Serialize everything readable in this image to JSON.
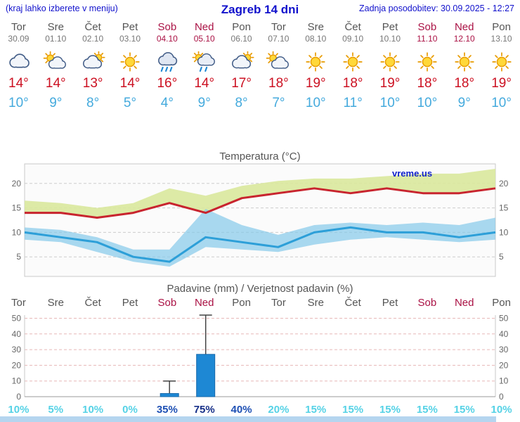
{
  "header": {
    "left_note": "(kraj lahko izberete v meniju)",
    "title": "Zagreb 14 dni",
    "updated": "Zadnja posodobitev: 30.09.2025 - 12:27"
  },
  "watermark": "vreme.us",
  "colors": {
    "accent_blue": "#1111cc",
    "weekend_red": "#aa1144",
    "max_red": "#cc1122",
    "min_blue": "#44aadd",
    "band_green": "#d9e89c",
    "band_blue": "#85c9ea",
    "line_red": "#c8242e",
    "line_blue": "#2d9fd8",
    "bar_blue": "#1e88d4",
    "grid_gray": "#cccccc",
    "grid_red": "#e7b8b8",
    "prob_high": "#162f88",
    "prob_mid": "#1e50b4",
    "prob_low": "#55d2e6",
    "footer_strip": "#b5d5ef"
  },
  "days": [
    {
      "name": "Tor",
      "date": "30.09",
      "weekend": false,
      "icon": "cloudy",
      "max": "14°",
      "min": "10°"
    },
    {
      "name": "Sre",
      "date": "01.10",
      "weekend": false,
      "icon": "partly-cloudy",
      "max": "14°",
      "min": "9°"
    },
    {
      "name": "Čet",
      "date": "02.10",
      "weekend": false,
      "icon": "mostly-cloudy",
      "max": "13°",
      "min": "8°"
    },
    {
      "name": "Pet",
      "date": "03.10",
      "weekend": false,
      "icon": "sunny",
      "max": "14°",
      "min": "5°"
    },
    {
      "name": "Sob",
      "date": "04.10",
      "weekend": true,
      "icon": "rain",
      "max": "16°",
      "min": "4°"
    },
    {
      "name": "Ned",
      "date": "05.10",
      "weekend": true,
      "icon": "sun-rain",
      "max": "14°",
      "min": "9°"
    },
    {
      "name": "Pon",
      "date": "06.10",
      "weekend": false,
      "icon": "mostly-cloudy",
      "max": "17°",
      "min": "8°"
    },
    {
      "name": "Tor",
      "date": "07.10",
      "weekend": false,
      "icon": "partly-cloudy",
      "max": "18°",
      "min": "7°"
    },
    {
      "name": "Sre",
      "date": "08.10",
      "weekend": false,
      "icon": "sunny",
      "max": "19°",
      "min": "10°"
    },
    {
      "name": "Čet",
      "date": "09.10",
      "weekend": false,
      "icon": "sunny",
      "max": "18°",
      "min": "11°"
    },
    {
      "name": "Pet",
      "date": "10.10",
      "weekend": false,
      "icon": "sunny",
      "max": "19°",
      "min": "10°"
    },
    {
      "name": "Sob",
      "date": "11.10",
      "weekend": true,
      "icon": "sunny",
      "max": "18°",
      "min": "10°"
    },
    {
      "name": "Ned",
      "date": "12.10",
      "weekend": true,
      "icon": "sunny",
      "max": "18°",
      "min": "9°"
    },
    {
      "name": "Pon",
      "date": "13.10",
      "weekend": false,
      "icon": "sunny",
      "max": "19°",
      "min": "10°"
    }
  ],
  "chart_data": [
    {
      "type": "line",
      "title": "Temperatura (°C)",
      "categories": [
        "Tor 30.09",
        "Sre 01.10",
        "Čet 02.10",
        "Pet 03.10",
        "Sob 04.10",
        "Ned 05.10",
        "Pon 06.10",
        "Tor 07.10",
        "Sre 08.10",
        "Čet 09.10",
        "Pet 10.10",
        "Sob 11.10",
        "Ned 12.10",
        "Pon 13.10"
      ],
      "series": [
        {
          "name": "max_temp",
          "color": "#c8242e",
          "values": [
            14,
            14,
            13,
            14,
            16,
            14,
            17,
            18,
            19,
            18,
            19,
            18,
            18,
            19
          ]
        },
        {
          "name": "max_range_upper",
          "values": [
            16.5,
            16,
            15,
            16,
            19,
            17.5,
            19.5,
            20.5,
            21,
            21,
            21.5,
            22,
            22,
            23
          ]
        },
        {
          "name": "min_temp",
          "color": "#2d9fd8",
          "values": [
            10,
            9,
            8,
            5,
            4,
            9,
            8,
            7,
            10,
            11,
            10,
            10,
            9,
            10
          ]
        },
        {
          "name": "min_range_upper",
          "values": [
            11,
            10.5,
            9,
            6.5,
            6.5,
            14.8,
            11.5,
            9.5,
            11.5,
            12,
            11.5,
            12,
            11.5,
            13
          ]
        },
        {
          "name": "min_range_lower",
          "values": [
            8.5,
            8,
            6,
            4,
            3,
            7,
            6.5,
            6,
            7.5,
            8.5,
            9,
            8.5,
            8,
            8.5
          ]
        }
      ],
      "ylim": [
        1,
        24
      ],
      "yticks": [
        5,
        10,
        15,
        20
      ],
      "grid": true,
      "legend": "none"
    },
    {
      "type": "bar",
      "title": "Padavine (mm) / Verjetnost padavin (%)",
      "categories": [
        "Tor",
        "Sre",
        "Čet",
        "Pet",
        "Sob",
        "Ned",
        "Pon",
        "Tor",
        "Sre",
        "Čet",
        "Pet",
        "Sob",
        "Ned",
        "Pon"
      ],
      "precip_mm": [
        0,
        0,
        0,
        0,
        2,
        27,
        0,
        0,
        0,
        0,
        0,
        0,
        0,
        0
      ],
      "precip_max_mm": [
        0,
        0,
        0,
        0,
        10,
        52,
        0,
        0,
        0,
        0,
        0,
        0,
        0,
        0
      ],
      "probability_pct": [
        10,
        5,
        10,
        0,
        35,
        75,
        40,
        20,
        15,
        15,
        15,
        15,
        15,
        10
      ],
      "ylim": [
        0,
        52
      ],
      "yticks": [
        0,
        10,
        20,
        30,
        40,
        50
      ],
      "grid": true,
      "legend": "none"
    }
  ]
}
